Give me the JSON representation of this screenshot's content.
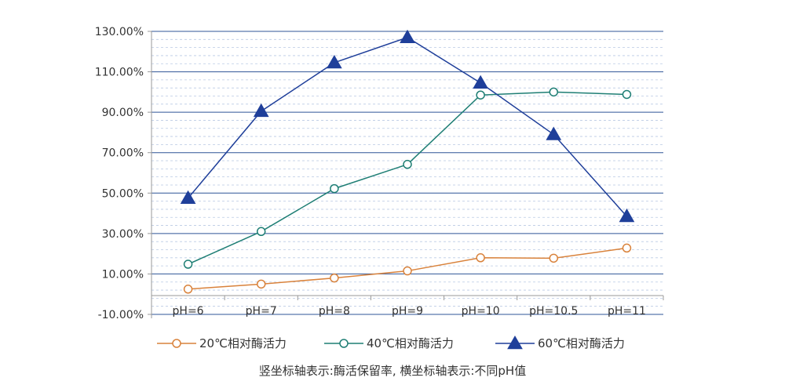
{
  "chart_data": {
    "type": "line",
    "categories": [
      "pH=6",
      "pH=7",
      "pH=8",
      "pH=9",
      "pH=10",
      "pH=10.5",
      "pH=11"
    ],
    "ylim": [
      -10,
      130
    ],
    "yticks": [
      -10,
      10,
      30,
      50,
      70,
      90,
      110,
      130
    ],
    "ytick_labels": [
      "-10.00%",
      "10.00%",
      "30.00%",
      "50.00%",
      "70.00%",
      "90.00%",
      "110.00%",
      "130.00%"
    ],
    "grid": true,
    "legend_position": "bottom",
    "series": [
      {
        "name": "20℃相对酶活力",
        "color": "#d9823b",
        "marker": "circle",
        "values": [
          2.5,
          5,
          8,
          11.5,
          18,
          17.8,
          22.8
        ]
      },
      {
        "name": "40℃相对酶活力",
        "color": "#1e7e74",
        "marker": "circle",
        "values": [
          14.8,
          31,
          52.2,
          64.2,
          98.5,
          100,
          98.8
        ]
      },
      {
        "name": "60℃相对酶活力",
        "color": "#1f3f9a",
        "marker": "triangle",
        "values": [
          47.5,
          90.5,
          114.5,
          127,
          104.5,
          79,
          38.5
        ]
      }
    ],
    "note": "竖坐标轴表示:酶活保留率, 横坐标轴表示:不同pH值"
  }
}
